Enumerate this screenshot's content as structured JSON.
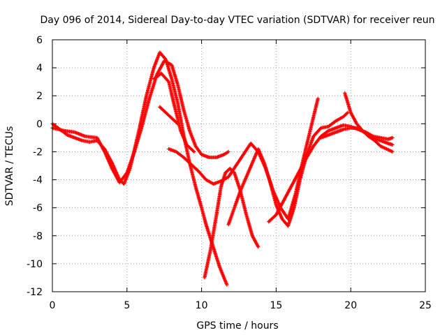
{
  "chart_data": {
    "type": "scatter",
    "title": "Day 096 of 2014, Sidereal Day-to-day VTEC variation (SDTVAR) for receiver reun",
    "xlabel": "GPS time / hours",
    "ylabel": "SDTVAR / TECUs",
    "xlim": [
      0,
      25
    ],
    "ylim": [
      -12,
      6
    ],
    "xticks": [
      0,
      5,
      10,
      15,
      20,
      25
    ],
    "yticks": [
      -12,
      -10,
      -8,
      -6,
      -4,
      -2,
      0,
      2,
      4,
      6
    ],
    "xtick_labels": [
      "0",
      "5",
      "10",
      "15",
      "20",
      "25"
    ],
    "ytick_labels": [
      "-12",
      "-10",
      "-8",
      "-6",
      "-4",
      "-2",
      "0",
      "2",
      "4",
      "6"
    ],
    "grid": true,
    "marker": "+",
    "color": "#ff0000",
    "series": [
      {
        "name": "track-1",
        "x": [
          0.0,
          0.5,
          1.0,
          1.5,
          2.0,
          2.5,
          3.0,
          3.5,
          4.0,
          4.5,
          4.8,
          5.2,
          5.8,
          6.3,
          6.8,
          7.2,
          7.6,
          8.0,
          8.4,
          8.8,
          9.2,
          9.6,
          10.0,
          10.3,
          10.6,
          10.9,
          11.2,
          11.5,
          11.7
        ],
        "y": [
          0.0,
          -0.4,
          -0.8,
          -1.0,
          -1.2,
          -1.3,
          -1.2,
          -1.8,
          -2.8,
          -4.0,
          -4.3,
          -3.2,
          -0.5,
          2.0,
          4.0,
          5.1,
          4.6,
          3.2,
          1.5,
          -0.8,
          -2.8,
          -4.5,
          -6.0,
          -7.2,
          -8.2,
          -9.2,
          -10.2,
          -11.0,
          -11.5
        ]
      },
      {
        "name": "track-2",
        "x": [
          0.0,
          0.8,
          1.5,
          2.2,
          3.0,
          3.5,
          4.0,
          4.5,
          5.0,
          5.5,
          6.0,
          6.5,
          7.0,
          7.5,
          8.0,
          8.4,
          8.8,
          9.2,
          9.6,
          10.0,
          10.5,
          11.0,
          11.5,
          11.8
        ],
        "y": [
          -0.3,
          -0.5,
          -0.6,
          -0.9,
          -1.0,
          -2.0,
          -3.2,
          -4.2,
          -3.5,
          -2.0,
          -0.2,
          1.8,
          3.5,
          4.5,
          4.2,
          2.8,
          1.0,
          -0.5,
          -1.6,
          -2.2,
          -2.4,
          -2.4,
          -2.2,
          -2.0
        ]
      },
      {
        "name": "track-3",
        "x": [
          6.8,
          7.3,
          7.8,
          8.2,
          8.6,
          9.0,
          9.5
        ],
        "y": [
          3.2,
          3.6,
          3.0,
          1.2,
          -0.5,
          -1.5,
          -2.0
        ]
      },
      {
        "name": "track-4",
        "x": [
          7.2,
          7.6,
          8.0,
          8.4
        ],
        "y": [
          1.2,
          0.8,
          0.4,
          0.0
        ]
      },
      {
        "name": "track-5",
        "x": [
          7.8,
          8.3,
          8.8,
          9.3,
          9.8,
          10.3,
          10.8,
          11.3,
          11.8,
          12.3,
          12.8,
          13.3,
          13.8,
          14.3,
          14.8,
          15.3,
          15.8,
          16.3,
          16.8,
          17.3,
          17.8
        ],
        "y": [
          -1.8,
          -2.0,
          -2.4,
          -2.9,
          -3.4,
          -4.0,
          -4.3,
          -4.1,
          -3.8,
          -3.0,
          -2.2,
          -1.4,
          -2.0,
          -3.2,
          -4.8,
          -6.0,
          -6.8,
          -5.0,
          -2.6,
          -0.4,
          1.8
        ]
      },
      {
        "name": "track-6",
        "x": [
          10.2,
          10.6,
          11.0,
          11.3,
          11.6,
          11.9,
          12.2,
          12.6,
          13.0,
          13.4,
          13.8
        ],
        "y": [
          -11.0,
          -9.0,
          -6.5,
          -4.5,
          -3.5,
          -3.2,
          -3.5,
          -4.8,
          -6.5,
          -8.0,
          -8.8
        ]
      },
      {
        "name": "track-7",
        "x": [
          11.8,
          12.2,
          12.6,
          13.0,
          13.4,
          13.8,
          14.2,
          14.6,
          15.0,
          15.4,
          15.8,
          16.2,
          16.6,
          17.0,
          17.5,
          18.0,
          18.5,
          19.0,
          19.5,
          19.8
        ],
        "y": [
          -7.2,
          -6.0,
          -4.8,
          -3.8,
          -2.8,
          -1.8,
          -2.8,
          -4.2,
          -5.8,
          -6.8,
          -7.3,
          -6.0,
          -4.0,
          -2.4,
          -0.9,
          -0.3,
          -0.2,
          0.2,
          0.5,
          0.8
        ]
      },
      {
        "name": "track-8",
        "x": [
          14.5,
          15.0,
          15.5,
          16.0,
          16.5,
          17.0,
          17.5,
          18.0,
          18.5,
          19.0,
          19.5,
          20.0,
          20.5,
          21.0,
          21.5,
          22.0,
          22.5,
          22.8
        ],
        "y": [
          -7.0,
          -6.5,
          -5.5,
          -4.5,
          -3.5,
          -2.5,
          -1.6,
          -0.9,
          -0.5,
          -0.3,
          -0.1,
          -0.2,
          -0.4,
          -0.6,
          -0.9,
          -1.0,
          -1.1,
          -1.0
        ]
      },
      {
        "name": "track-9",
        "x": [
          19.6,
          20.0,
          20.4,
          20.8,
          21.2,
          21.6,
          22.0,
          22.4,
          22.8
        ],
        "y": [
          2.2,
          0.8,
          0.0,
          -0.5,
          -0.9,
          -1.2,
          -1.6,
          -1.8,
          -2.0
        ]
      },
      {
        "name": "track-10",
        "x": [
          18.0,
          18.5,
          19.0,
          19.5,
          20.0,
          20.5,
          21.0,
          21.5,
          22.0,
          22.5,
          22.8
        ],
        "y": [
          -1.0,
          -0.8,
          -0.6,
          -0.4,
          -0.3,
          -0.3,
          -0.7,
          -1.0,
          -1.2,
          -1.4,
          -1.5
        ]
      }
    ]
  }
}
